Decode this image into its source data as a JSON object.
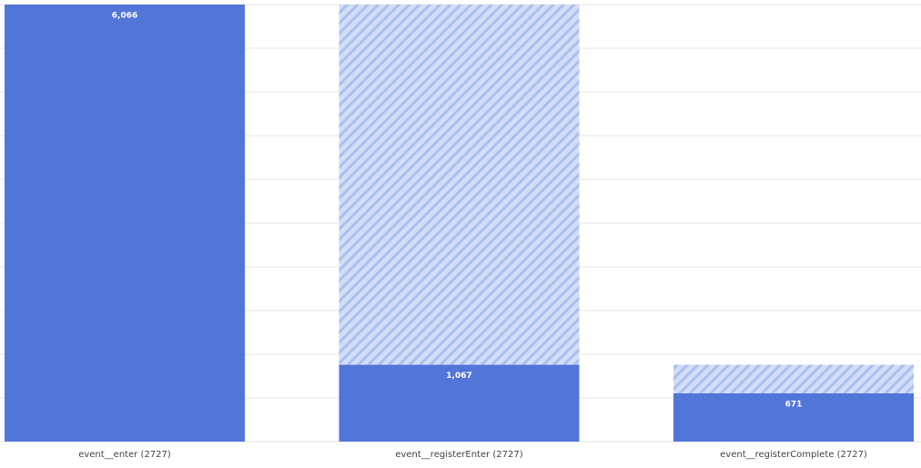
{
  "chart_data": {
    "type": "funnel",
    "categories": [
      "event__enter (2727)",
      "event__registerEnter (2727)",
      "event__registerComplete (2727)"
    ],
    "series": [
      {
        "color": "#5275d8",
        "values": [
          6066,
          1067,
          671
        ],
        "value_labels": [
          "6,066",
          "1,067",
          "671"
        ]
      },
      {
        "color": "#c9d7f4",
        "pattern": "hatch",
        "values": [
          0,
          4999,
          396
        ]
      }
    ],
    "ylim": [
      0,
      6066
    ],
    "yticks": [
      0,
      606.6,
      1213.2,
      1819.8,
      2426.4,
      3033,
      3639.6,
      4246.2,
      4852.8,
      5459.4,
      6066
    ],
    "grid": true
  }
}
